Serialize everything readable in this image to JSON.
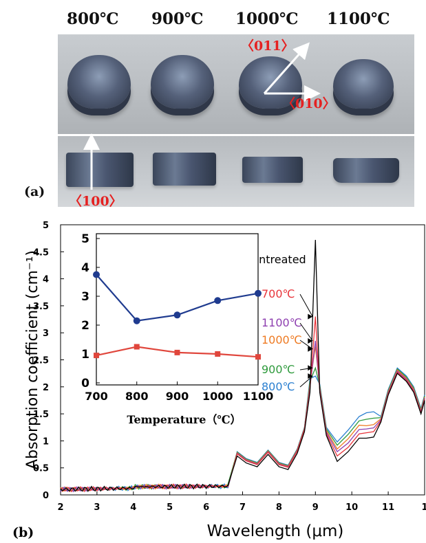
{
  "panel_a": {
    "label": "(a)",
    "temperatures": [
      "800℃",
      "900℃",
      "1000℃",
      "1100℃"
    ],
    "directions": {
      "d011": "〈011〉",
      "d010": "〈010〉",
      "d100": "〈100〉"
    }
  },
  "panel_b": {
    "label": "(b)"
  },
  "colors": {
    "untreated": "#000000",
    "c700": "#e8343a",
    "c1100": "#8e3fb0",
    "c1000": "#ee7a22",
    "c900": "#2e9a3c",
    "c800": "#2a7fd0",
    "inset_blue": "#1f3b8f",
    "inset_red": "#e0463c"
  },
  "chart_data": [
    {
      "type": "line",
      "xlabel": "Wavelength (μm)",
      "ylabel": "Absorption coefficient (cm⁻¹)",
      "xlim": [
        2,
        12
      ],
      "ylim": [
        0,
        5
      ],
      "x_ticks": [
        "2",
        "3",
        "4",
        "5",
        "6",
        "7",
        "8",
        "9",
        "10",
        "11",
        "1"
      ],
      "y_ticks": [
        "0",
        "0.5",
        "1",
        "1.5",
        "2",
        "2.5",
        "3",
        "3.5",
        "4",
        "4.5",
        "5"
      ],
      "legend_labels": [
        "untreated",
        "700℃",
        "1100℃",
        "1000℃",
        "900℃",
        "800℃"
      ],
      "series": [
        {
          "name": "untreated",
          "peak9": 4.72,
          "dip96": 0.62,
          "base104": 1.05
        },
        {
          "name": "700℃",
          "peak9": 3.3,
          "dip96": 0.72,
          "base104": 1.15
        },
        {
          "name": "1100℃",
          "peak9": 2.85,
          "dip96": 0.8,
          "base104": 1.22
        },
        {
          "name": "1000℃",
          "peak9": 2.75,
          "dip96": 0.85,
          "base104": 1.28
        },
        {
          "name": "900℃",
          "peak9": 2.35,
          "dip96": 0.92,
          "base104": 1.4
        },
        {
          "name": "800℃",
          "peak9": 2.2,
          "dip96": 0.98,
          "base104": 1.52
        }
      ],
      "common_points": [
        [
          2.0,
          0.1
        ],
        [
          3.0,
          0.13
        ],
        [
          4.0,
          0.15
        ],
        [
          5.0,
          0.16
        ],
        [
          6.0,
          0.16
        ],
        [
          6.6,
          0.25
        ],
        [
          6.85,
          0.75
        ],
        [
          7.1,
          0.62
        ],
        [
          7.4,
          0.55
        ],
        [
          7.7,
          0.78
        ],
        [
          8.0,
          0.55
        ],
        [
          8.25,
          0.5
        ],
        [
          8.5,
          0.8
        ],
        [
          8.7,
          1.2
        ]
      ],
      "tail_points": [
        [
          10.8,
          1.4
        ],
        [
          11.0,
          1.9
        ],
        [
          11.25,
          2.3
        ],
        [
          11.5,
          2.15
        ],
        [
          11.7,
          1.95
        ],
        [
          11.9,
          1.55
        ],
        [
          12.0,
          1.8
        ]
      ]
    },
    {
      "type": "line",
      "xlabel": "Temperature（℃）",
      "ylabel": "",
      "x_ticks": [
        "700",
        "800",
        "900",
        "1000",
        "1100"
      ],
      "y_ticks": [
        "0",
        "1",
        "2",
        "3",
        "4",
        "5"
      ],
      "xlim": [
        700,
        1100
      ],
      "ylim": [
        0,
        5
      ],
      "series": [
        {
          "color_key": "inset_blue",
          "x": [
            700,
            800,
            900,
            1000,
            1100
          ],
          "values": [
            3.75,
            2.15,
            2.35,
            2.85,
            3.1
          ]
        },
        {
          "color_key": "inset_red",
          "x": [
            700,
            800,
            900,
            1000,
            1100
          ],
          "values": [
            0.95,
            1.25,
            1.05,
            1.0,
            0.9
          ]
        }
      ]
    }
  ]
}
